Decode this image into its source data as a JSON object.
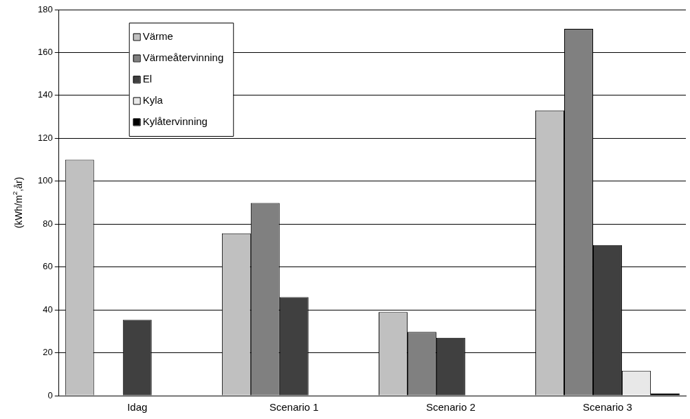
{
  "chart_data": {
    "type": "bar",
    "ylabel": "(kWh/m$^{2}$,år)",
    "categories": [
      "Idag",
      "Scenario 1",
      "Scenario 2",
      "Scenario 3"
    ],
    "series": [
      {
        "name": "Värme",
        "color": "#c0c0c0",
        "values": [
          110,
          75.7,
          39,
          133
        ]
      },
      {
        "name": "Värmeåtervinning",
        "color": "#808080",
        "values": [
          null,
          89.8,
          29.7,
          171
        ]
      },
      {
        "name": "El",
        "color": "#404040",
        "values": [
          35.4,
          46,
          27,
          70.2
        ]
      },
      {
        "name": "Kyla",
        "color": "#e8e8e8",
        "values": [
          null,
          null,
          null,
          11.6
        ]
      },
      {
        "name": "Kylåtervinning",
        "color": "#000000",
        "values": [
          null,
          null,
          null,
          1
        ]
      }
    ],
    "ylim": [
      0,
      180
    ],
    "yticks": [
      0,
      20,
      40,
      60,
      80,
      100,
      120,
      140,
      160,
      180
    ],
    "grid": "y",
    "legend": "top left"
  }
}
